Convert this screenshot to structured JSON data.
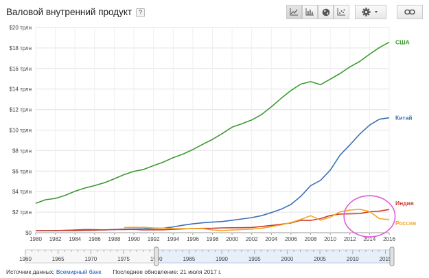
{
  "header": {
    "title": "Валовой внутренний продукт",
    "help_label": "?",
    "buttons": [
      {
        "name": "line-chart-icon",
        "active": true
      },
      {
        "name": "bar-chart-icon",
        "active": false
      },
      {
        "name": "globe-map-icon",
        "active": false
      },
      {
        "name": "scatter-chart-icon",
        "active": false
      }
    ],
    "settings_icon": "gear-icon",
    "link_icon": "link-icon"
  },
  "chart_data": {
    "type": "line",
    "title": "",
    "xlabel": "",
    "ylabel": "",
    "xlim": [
      1980,
      2016
    ],
    "ylim": [
      0,
      20
    ],
    "y_ticks": [
      {
        "value": 0,
        "label": "$0"
      },
      {
        "value": 2,
        "label": "$2 трлн"
      },
      {
        "value": 4,
        "label": "$4 трлн"
      },
      {
        "value": 6,
        "label": "$6 трлн"
      },
      {
        "value": 8,
        "label": "$8 трлн"
      },
      {
        "value": 10,
        "label": "$10 трлн"
      },
      {
        "value": 12,
        "label": "$12 трлн"
      },
      {
        "value": 14,
        "label": "$14 трлн"
      },
      {
        "value": 16,
        "label": "$16 трлн"
      },
      {
        "value": 18,
        "label": "$18 трлн"
      },
      {
        "value": 20,
        "label": "$20 трлн"
      }
    ],
    "x_ticks": [
      "1980",
      "1982",
      "1984",
      "1986",
      "1988",
      "1990",
      "1992",
      "1994",
      "1996",
      "1998",
      "2000",
      "2002",
      "2004",
      "2006",
      "2008",
      "2010",
      "2012",
      "2014",
      "2016"
    ],
    "grid": true,
    "series": [
      {
        "name": "США",
        "color": "#3a9a2f",
        "x": [
          1980,
          1981,
          1982,
          1983,
          1984,
          1985,
          1986,
          1987,
          1988,
          1989,
          1990,
          1991,
          1992,
          1993,
          1994,
          1995,
          1996,
          1997,
          1998,
          1999,
          2000,
          2001,
          2002,
          2003,
          2004,
          2005,
          2006,
          2007,
          2008,
          2009,
          2010,
          2011,
          2012,
          2013,
          2014,
          2015,
          2016
        ],
        "values": [
          2.86,
          3.21,
          3.34,
          3.64,
          4.04,
          4.35,
          4.59,
          4.87,
          5.25,
          5.66,
          5.98,
          6.17,
          6.54,
          6.88,
          7.31,
          7.66,
          8.1,
          8.61,
          9.09,
          9.66,
          10.28,
          10.62,
          10.98,
          11.51,
          12.27,
          13.09,
          13.86,
          14.48,
          14.72,
          14.42,
          14.96,
          15.52,
          16.16,
          16.69,
          17.39,
          18.04,
          18.57
        ]
      },
      {
        "name": "Китай",
        "color": "#3d6fb5",
        "x": [
          1980,
          1981,
          1982,
          1983,
          1984,
          1985,
          1986,
          1987,
          1988,
          1989,
          1990,
          1991,
          1992,
          1993,
          1994,
          1995,
          1996,
          1997,
          1998,
          1999,
          2000,
          2001,
          2002,
          2003,
          2004,
          2005,
          2006,
          2007,
          2008,
          2009,
          2010,
          2011,
          2012,
          2013,
          2014,
          2015,
          2016
        ],
        "values": [
          0.19,
          0.2,
          0.21,
          0.23,
          0.26,
          0.31,
          0.3,
          0.27,
          0.31,
          0.35,
          0.36,
          0.38,
          0.43,
          0.44,
          0.56,
          0.73,
          0.86,
          0.96,
          1.03,
          1.09,
          1.21,
          1.34,
          1.47,
          1.66,
          1.96,
          2.29,
          2.75,
          3.55,
          4.59,
          5.1,
          6.1,
          7.57,
          8.56,
          9.61,
          10.48,
          11.06,
          11.2
        ]
      },
      {
        "name": "Индия",
        "color": "#cc3b2c",
        "x": [
          1980,
          1981,
          1982,
          1983,
          1984,
          1985,
          1986,
          1987,
          1988,
          1989,
          1990,
          1991,
          1992,
          1993,
          1994,
          1995,
          1996,
          1997,
          1998,
          1999,
          2000,
          2001,
          2002,
          2003,
          2004,
          2005,
          2006,
          2007,
          2008,
          2009,
          2010,
          2011,
          2012,
          2013,
          2014,
          2015,
          2016
        ],
        "values": [
          0.19,
          0.2,
          0.2,
          0.22,
          0.21,
          0.23,
          0.25,
          0.28,
          0.3,
          0.3,
          0.32,
          0.27,
          0.29,
          0.28,
          0.33,
          0.37,
          0.4,
          0.42,
          0.43,
          0.47,
          0.48,
          0.49,
          0.51,
          0.61,
          0.71,
          0.82,
          0.94,
          1.22,
          1.2,
          1.37,
          1.68,
          1.82,
          1.83,
          1.86,
          2.04,
          2.1,
          2.26
        ]
      },
      {
        "name": "Россия",
        "color": "#f5a623",
        "x": [
          1989,
          1990,
          1991,
          1992,
          1993,
          1994,
          1995,
          1996,
          1997,
          1998,
          1999,
          2000,
          2001,
          2002,
          2003,
          2004,
          2005,
          2006,
          2007,
          2008,
          2009,
          2010,
          2011,
          2012,
          2013,
          2014,
          2015,
          2016
        ],
        "values": [
          0.51,
          0.52,
          0.52,
          0.46,
          0.44,
          0.4,
          0.4,
          0.39,
          0.4,
          0.27,
          0.2,
          0.26,
          0.31,
          0.35,
          0.43,
          0.59,
          0.76,
          0.99,
          1.3,
          1.66,
          1.22,
          1.52,
          2.05,
          2.21,
          2.29,
          2.06,
          1.37,
          1.28
        ]
      }
    ],
    "annotation": {
      "type": "ellipse",
      "color": "#e05ad6",
      "x_center": 2014,
      "y_center": 1.6,
      "x_radius": 2.6,
      "y_radius": 2.0
    }
  },
  "timeline": {
    "range": [
      1960,
      2016
    ],
    "labels": [
      {
        "year": 1960,
        "label": "1960"
      },
      {
        "year": 1965,
        "label": "1965"
      },
      {
        "year": 1970,
        "label": "1970"
      },
      {
        "year": 1975,
        "label": "1975"
      },
      {
        "year": 1980,
        "label": "1980"
      },
      {
        "year": 1985,
        "label": "1985"
      },
      {
        "year": 1990,
        "label": "1990"
      },
      {
        "year": 1995,
        "label": "1995"
      },
      {
        "year": 2000,
        "label": "2000"
      },
      {
        "year": 2005,
        "label": "2005"
      },
      {
        "year": 2010,
        "label": "2010"
      },
      {
        "year": 2015,
        "label": "2015"
      }
    ],
    "selected": [
      1980,
      2016
    ]
  },
  "footer": {
    "source_label": "Источник данных:",
    "source_link": "Всемирный банк",
    "updated": "Последнее обновление: 21 июля 2017 г."
  }
}
